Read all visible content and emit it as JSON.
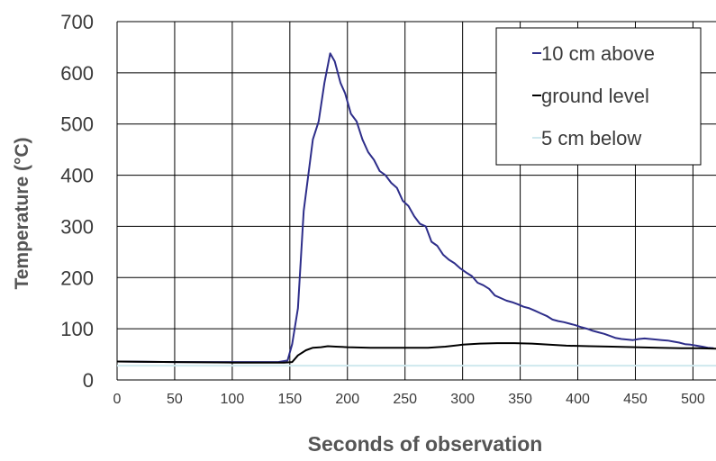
{
  "chart_data": {
    "type": "line",
    "title": "",
    "xlabel": "Seconds of observation",
    "ylabel": "Temperature (°C)",
    "xlim": [
      0,
      520
    ],
    "ylim": [
      0,
      700
    ],
    "x_ticks": [
      "0",
      "50",
      "100",
      "150",
      "200",
      "250",
      "300",
      "350",
      "400",
      "450",
      "500"
    ],
    "y_ticks": [
      "0",
      "100",
      "200",
      "300",
      "400",
      "500",
      "600",
      "700"
    ],
    "grid": true,
    "legend_position": "top-right",
    "series": [
      {
        "name": "10 cm above",
        "color": "#2e2e8a",
        "points": [
          [
            0,
            36
          ],
          [
            50,
            35
          ],
          [
            100,
            35
          ],
          [
            140,
            35
          ],
          [
            148,
            38
          ],
          [
            152,
            70
          ],
          [
            157,
            140
          ],
          [
            162,
            330
          ],
          [
            166,
            400
          ],
          [
            170,
            470
          ],
          [
            175,
            505
          ],
          [
            180,
            580
          ],
          [
            185,
            638
          ],
          [
            189,
            622
          ],
          [
            194,
            580
          ],
          [
            198,
            560
          ],
          [
            203,
            520
          ],
          [
            208,
            505
          ],
          [
            213,
            470
          ],
          [
            218,
            445
          ],
          [
            223,
            430
          ],
          [
            228,
            408
          ],
          [
            233,
            400
          ],
          [
            238,
            385
          ],
          [
            243,
            375
          ],
          [
            248,
            350
          ],
          [
            253,
            340
          ],
          [
            258,
            320
          ],
          [
            263,
            305
          ],
          [
            268,
            300
          ],
          [
            273,
            270
          ],
          [
            278,
            262
          ],
          [
            283,
            245
          ],
          [
            288,
            235
          ],
          [
            293,
            228
          ],
          [
            298,
            218
          ],
          [
            303,
            210
          ],
          [
            308,
            203
          ],
          [
            313,
            190
          ],
          [
            318,
            185
          ],
          [
            323,
            178
          ],
          [
            328,
            165
          ],
          [
            333,
            160
          ],
          [
            338,
            155
          ],
          [
            343,
            152
          ],
          [
            348,
            148
          ],
          [
            353,
            143
          ],
          [
            358,
            140
          ],
          [
            363,
            135
          ],
          [
            368,
            130
          ],
          [
            373,
            125
          ],
          [
            378,
            118
          ],
          [
            383,
            115
          ],
          [
            388,
            113
          ],
          [
            393,
            110
          ],
          [
            398,
            107
          ],
          [
            403,
            103
          ],
          [
            408,
            100
          ],
          [
            413,
            96
          ],
          [
            418,
            93
          ],
          [
            423,
            90
          ],
          [
            428,
            86
          ],
          [
            433,
            82
          ],
          [
            438,
            80
          ],
          [
            443,
            79
          ],
          [
            448,
            78
          ],
          [
            453,
            80
          ],
          [
            458,
            81
          ],
          [
            463,
            80
          ],
          [
            468,
            79
          ],
          [
            473,
            78
          ],
          [
            478,
            77
          ],
          [
            483,
            75
          ],
          [
            488,
            73
          ],
          [
            493,
            70
          ],
          [
            498,
            69
          ],
          [
            503,
            67
          ],
          [
            508,
            65
          ],
          [
            513,
            63
          ],
          [
            518,
            62
          ]
        ]
      },
      {
        "name": "ground level",
        "color": "#000000",
        "points": [
          [
            0,
            36
          ],
          [
            50,
            35
          ],
          [
            100,
            34
          ],
          [
            145,
            34
          ],
          [
            152,
            35
          ],
          [
            157,
            48
          ],
          [
            164,
            58
          ],
          [
            170,
            63
          ],
          [
            177,
            64
          ],
          [
            183,
            66
          ],
          [
            190,
            65
          ],
          [
            200,
            64
          ],
          [
            220,
            63
          ],
          [
            250,
            63
          ],
          [
            270,
            63
          ],
          [
            285,
            65
          ],
          [
            300,
            69
          ],
          [
            315,
            71
          ],
          [
            330,
            72
          ],
          [
            345,
            72
          ],
          [
            360,
            71
          ],
          [
            375,
            69
          ],
          [
            390,
            67
          ],
          [
            410,
            66
          ],
          [
            430,
            65
          ],
          [
            450,
            64
          ],
          [
            470,
            63
          ],
          [
            490,
            62
          ],
          [
            505,
            62
          ],
          [
            520,
            61
          ]
        ]
      },
      {
        "name": "5 cm below",
        "color": "#cfe8ee",
        "points": [
          [
            0,
            28
          ],
          [
            150,
            28
          ],
          [
            300,
            28
          ],
          [
            450,
            28
          ],
          [
            520,
            28
          ]
        ]
      }
    ]
  }
}
